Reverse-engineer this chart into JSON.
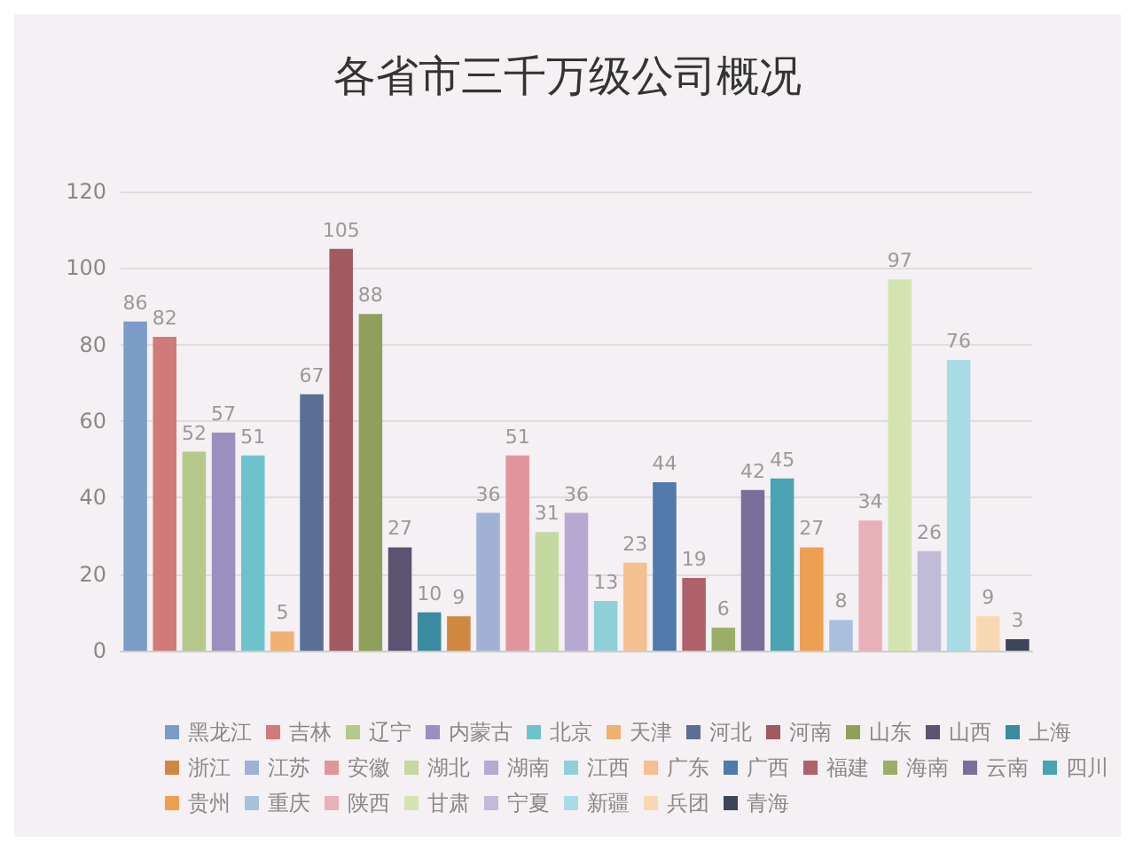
{
  "chart_data": {
    "type": "bar",
    "title": "各省市三千万级公司概况",
    "categories": [
      null,
      null,
      null,
      null,
      null,
      null,
      null,
      null,
      null,
      null,
      null,
      null,
      null,
      null,
      null,
      null,
      null,
      null,
      null,
      null,
      null,
      null,
      null,
      null,
      null,
      null,
      null,
      null,
      null,
      null,
      null
    ],
    "series": [
      {
        "name": "黑龙江",
        "color": "#7a9cc6",
        "values": [
          86,
          null,
          null,
          null,
          null,
          null,
          null,
          null,
          null,
          null,
          null,
          null,
          null,
          null,
          null,
          null,
          null,
          null,
          null,
          null,
          null,
          null,
          null,
          null,
          null,
          null,
          null,
          null,
          null,
          null,
          null
        ]
      },
      {
        "name": "吉林",
        "color": "#d07a7a",
        "values": [
          null,
          82,
          null,
          null,
          null,
          null,
          null,
          null,
          null,
          null,
          null,
          null,
          null,
          null,
          null,
          null,
          null,
          null,
          null,
          null,
          null,
          null,
          null,
          null,
          null,
          null,
          null,
          null,
          null,
          null,
          null
        ]
      },
      {
        "name": "辽宁",
        "color": "#b5c98a",
        "values": [
          null,
          null,
          52,
          null,
          null,
          null,
          null,
          null,
          null,
          null,
          null,
          null,
          null,
          null,
          null,
          null,
          null,
          null,
          null,
          null,
          null,
          null,
          null,
          null,
          null,
          null,
          null,
          null,
          null,
          null,
          null
        ]
      },
      {
        "name": "内蒙古",
        "color": "#9b8fc0",
        "values": [
          null,
          null,
          null,
          57,
          null,
          null,
          null,
          null,
          null,
          null,
          null,
          null,
          null,
          null,
          null,
          null,
          null,
          null,
          null,
          null,
          null,
          null,
          null,
          null,
          null,
          null,
          null,
          null,
          null,
          null,
          null
        ]
      },
      {
        "name": "北京",
        "color": "#6cc3cc",
        "values": [
          null,
          null,
          null,
          null,
          51,
          null,
          null,
          null,
          null,
          null,
          null,
          null,
          null,
          null,
          null,
          null,
          null,
          null,
          null,
          null,
          null,
          null,
          null,
          null,
          null,
          null,
          null,
          null,
          null,
          null,
          null
        ]
      },
      {
        "name": "天津",
        "color": "#f0b070",
        "values": [
          null,
          null,
          null,
          null,
          null,
          5,
          null,
          null,
          null,
          null,
          null,
          null,
          null,
          null,
          null,
          null,
          null,
          null,
          null,
          null,
          null,
          null,
          null,
          null,
          null,
          null,
          null,
          null,
          null,
          null,
          null
        ]
      },
      {
        "name": "河北",
        "color": "#5a6f95",
        "values": [
          null,
          null,
          null,
          null,
          null,
          null,
          67,
          null,
          null,
          null,
          null,
          null,
          null,
          null,
          null,
          null,
          null,
          null,
          null,
          null,
          null,
          null,
          null,
          null,
          null,
          null,
          null,
          null,
          null,
          null,
          null
        ]
      },
      {
        "name": "河南",
        "color": "#a05a60",
        "values": [
          null,
          null,
          null,
          null,
          null,
          null,
          null,
          105,
          null,
          null,
          null,
          null,
          null,
          null,
          null,
          null,
          null,
          null,
          null,
          null,
          null,
          null,
          null,
          null,
          null,
          null,
          null,
          null,
          null,
          null,
          null
        ]
      },
      {
        "name": "山东",
        "color": "#8ea05a",
        "values": [
          null,
          null,
          null,
          null,
          null,
          null,
          null,
          null,
          88,
          null,
          null,
          null,
          null,
          null,
          null,
          null,
          null,
          null,
          null,
          null,
          null,
          null,
          null,
          null,
          null,
          null,
          null,
          null,
          null,
          null,
          null
        ]
      },
      {
        "name": "山西",
        "color": "#5a5470",
        "values": [
          null,
          null,
          null,
          null,
          null,
          null,
          null,
          null,
          null,
          27,
          null,
          null,
          null,
          null,
          null,
          null,
          null,
          null,
          null,
          null,
          null,
          null,
          null,
          null,
          null,
          null,
          null,
          null,
          null,
          null,
          null
        ]
      },
      {
        "name": "上海",
        "color": "#3a8aa0",
        "values": [
          null,
          null,
          null,
          null,
          null,
          null,
          null,
          null,
          null,
          null,
          10,
          null,
          null,
          null,
          null,
          null,
          null,
          null,
          null,
          null,
          null,
          null,
          null,
          null,
          null,
          null,
          null,
          null,
          null,
          null,
          null
        ]
      },
      {
        "name": "浙江",
        "color": "#d08840",
        "values": [
          null,
          null,
          null,
          null,
          null,
          null,
          null,
          null,
          null,
          null,
          null,
          9,
          null,
          null,
          null,
          null,
          null,
          null,
          null,
          null,
          null,
          null,
          null,
          null,
          null,
          null,
          null,
          null,
          null,
          null,
          null
        ]
      },
      {
        "name": "江苏",
        "color": "#9fb2d6",
        "values": [
          null,
          null,
          null,
          null,
          null,
          null,
          null,
          null,
          null,
          null,
          null,
          null,
          36,
          null,
          null,
          null,
          null,
          null,
          null,
          null,
          null,
          null,
          null,
          null,
          null,
          null,
          null,
          null,
          null,
          null,
          null
        ]
      },
      {
        "name": "安徽",
        "color": "#e0959c",
        "values": [
          null,
          null,
          null,
          null,
          null,
          null,
          null,
          null,
          null,
          null,
          null,
          null,
          null,
          51,
          null,
          null,
          null,
          null,
          null,
          null,
          null,
          null,
          null,
          null,
          null,
          null,
          null,
          null,
          null,
          null,
          null
        ]
      },
      {
        "name": "湖北",
        "color": "#c5d8a0",
        "values": [
          null,
          null,
          null,
          null,
          null,
          null,
          null,
          null,
          null,
          null,
          null,
          null,
          null,
          null,
          31,
          null,
          null,
          null,
          null,
          null,
          null,
          null,
          null,
          null,
          null,
          null,
          null,
          null,
          null,
          null,
          null
        ]
      },
      {
        "name": "湖南",
        "color": "#b7a8d2",
        "values": [
          null,
          null,
          null,
          null,
          null,
          null,
          null,
          null,
          null,
          null,
          null,
          null,
          null,
          null,
          null,
          36,
          null,
          null,
          null,
          null,
          null,
          null,
          null,
          null,
          null,
          null,
          null,
          null,
          null,
          null,
          null
        ]
      },
      {
        "name": "江西",
        "color": "#8fd0d8",
        "values": [
          null,
          null,
          null,
          null,
          null,
          null,
          null,
          null,
          null,
          null,
          null,
          null,
          null,
          null,
          null,
          null,
          13,
          null,
          null,
          null,
          null,
          null,
          null,
          null,
          null,
          null,
          null,
          null,
          null,
          null,
          null
        ]
      },
      {
        "name": "广东",
        "color": "#f4c090",
        "values": [
          null,
          null,
          null,
          null,
          null,
          null,
          null,
          null,
          null,
          null,
          null,
          null,
          null,
          null,
          null,
          null,
          null,
          23,
          null,
          null,
          null,
          null,
          null,
          null,
          null,
          null,
          null,
          null,
          null,
          null,
          null
        ]
      },
      {
        "name": "广西",
        "color": "#4f7aab",
        "values": [
          null,
          null,
          null,
          null,
          null,
          null,
          null,
          null,
          null,
          null,
          null,
          null,
          null,
          null,
          null,
          null,
          null,
          null,
          44,
          null,
          null,
          null,
          null,
          null,
          null,
          null,
          null,
          null,
          null,
          null,
          null
        ]
      },
      {
        "name": "福建",
        "color": "#b06068",
        "values": [
          null,
          null,
          null,
          null,
          null,
          null,
          null,
          null,
          null,
          null,
          null,
          null,
          null,
          null,
          null,
          null,
          null,
          null,
          null,
          19,
          null,
          null,
          null,
          null,
          null,
          null,
          null,
          null,
          null,
          null,
          null
        ]
      },
      {
        "name": "海南",
        "color": "#9aae68",
        "values": [
          null,
          null,
          null,
          null,
          null,
          null,
          null,
          null,
          null,
          null,
          null,
          null,
          null,
          null,
          null,
          null,
          null,
          null,
          null,
          null,
          6,
          null,
          null,
          null,
          null,
          null,
          null,
          null,
          null,
          null,
          null
        ]
      },
      {
        "name": "云南",
        "color": "#7a6e9a",
        "values": [
          null,
          null,
          null,
          null,
          null,
          null,
          null,
          null,
          null,
          null,
          null,
          null,
          null,
          null,
          null,
          null,
          null,
          null,
          null,
          null,
          null,
          42,
          null,
          null,
          null,
          null,
          null,
          null,
          null,
          null,
          null
        ]
      },
      {
        "name": "四川",
        "color": "#4aa3b0",
        "values": [
          null,
          null,
          null,
          null,
          null,
          null,
          null,
          null,
          null,
          null,
          null,
          null,
          null,
          null,
          null,
          null,
          null,
          null,
          null,
          null,
          null,
          null,
          45,
          null,
          null,
          null,
          null,
          null,
          null,
          null,
          null
        ]
      },
      {
        "name": "贵州",
        "color": "#eda050",
        "values": [
          null,
          null,
          null,
          null,
          null,
          null,
          null,
          null,
          null,
          null,
          null,
          null,
          null,
          null,
          null,
          null,
          null,
          null,
          null,
          null,
          null,
          null,
          null,
          27,
          null,
          null,
          null,
          null,
          null,
          null,
          null
        ]
      },
      {
        "name": "重庆",
        "color": "#a8c0dc",
        "values": [
          null,
          null,
          null,
          null,
          null,
          null,
          null,
          null,
          null,
          null,
          null,
          null,
          null,
          null,
          null,
          null,
          null,
          null,
          null,
          null,
          null,
          null,
          null,
          null,
          8,
          null,
          null,
          null,
          null,
          null,
          null
        ]
      },
      {
        "name": "陕西",
        "color": "#e8b0b8",
        "values": [
          null,
          null,
          null,
          null,
          null,
          null,
          null,
          null,
          null,
          null,
          null,
          null,
          null,
          null,
          null,
          null,
          null,
          null,
          null,
          null,
          null,
          null,
          null,
          null,
          null,
          34,
          null,
          null,
          null,
          null,
          null
        ]
      },
      {
        "name": "甘肃",
        "color": "#d4e4b0",
        "values": [
          null,
          null,
          null,
          null,
          null,
          null,
          null,
          null,
          null,
          null,
          null,
          null,
          null,
          null,
          null,
          null,
          null,
          null,
          null,
          null,
          null,
          null,
          null,
          null,
          null,
          null,
          97,
          null,
          null,
          null,
          null
        ]
      },
      {
        "name": "宁夏",
        "color": "#c0bcd8",
        "values": [
          null,
          null,
          null,
          null,
          null,
          null,
          null,
          null,
          null,
          null,
          null,
          null,
          null,
          null,
          null,
          null,
          null,
          null,
          null,
          null,
          null,
          null,
          null,
          null,
          null,
          null,
          null,
          26,
          null,
          null,
          null
        ]
      },
      {
        "name": "新疆",
        "color": "#a8dce4",
        "values": [
          null,
          null,
          null,
          null,
          null,
          null,
          null,
          null,
          null,
          null,
          null,
          null,
          null,
          null,
          null,
          null,
          null,
          null,
          null,
          null,
          null,
          null,
          null,
          null,
          null,
          null,
          null,
          null,
          76,
          null,
          null
        ]
      },
      {
        "name": "兵团",
        "color": "#f8d8b0",
        "values": [
          null,
          null,
          null,
          null,
          null,
          null,
          null,
          null,
          null,
          null,
          null,
          null,
          null,
          null,
          null,
          null,
          null,
          null,
          null,
          null,
          null,
          null,
          null,
          null,
          null,
          null,
          null,
          null,
          null,
          9,
          null
        ]
      },
      {
        "name": "青海",
        "color": "#3c4658",
        "values": [
          null,
          null,
          null,
          null,
          null,
          null,
          null,
          null,
          null,
          null,
          null,
          null,
          null,
          null,
          null,
          null,
          null,
          null,
          null,
          null,
          null,
          null,
          null,
          null,
          null,
          null,
          null,
          null,
          null,
          null,
          3
        ]
      }
    ],
    "ylim": [
      0,
      120
    ],
    "yticks": [
      0,
      20,
      40,
      60,
      80,
      100,
      120
    ],
    "grid": "y",
    "legend": "bottom",
    "data_labels": true
  }
}
